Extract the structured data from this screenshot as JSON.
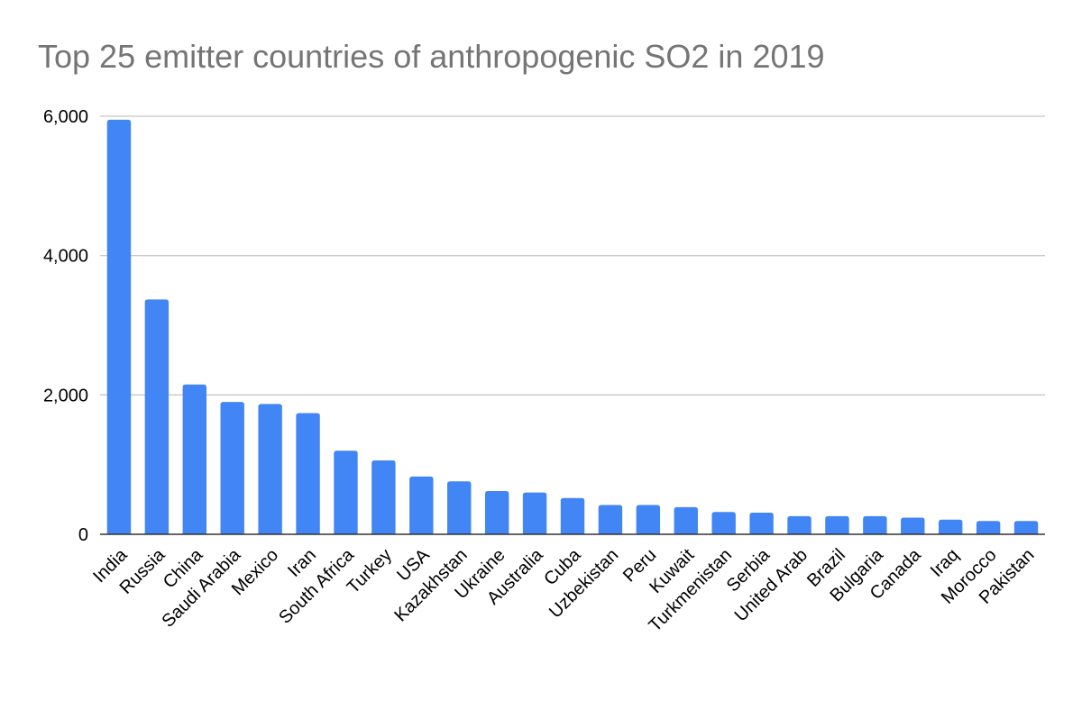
{
  "chart_data": {
    "type": "bar",
    "title": "Top 25 emitter countries of anthropogenic SO2 in 2019",
    "xlabel": "",
    "ylabel": "",
    "ylim": [
      0,
      6000
    ],
    "yticks": [
      0,
      2000,
      4000,
      6000
    ],
    "ytick_labels": [
      "0",
      "2,000",
      "4,000",
      "6,000"
    ],
    "grid": true,
    "legend": "none",
    "bar_color": "#4285f4",
    "categories": [
      "India",
      "Russia",
      "China",
      "Saudi Arabia",
      "Mexico",
      "Iran",
      "South Africa",
      "Turkey",
      "USA",
      "Kazakhstan",
      "Ukraine",
      "Australia",
      "Cuba",
      "Uzbekistan",
      "Peru",
      "Kuwait",
      "Turkmenistan",
      "Serbia",
      "United Arab",
      "Brazil",
      "Bulgaria",
      "Canada",
      "Iraq",
      "Morocco",
      "Pakistan"
    ],
    "values": [
      5950,
      3370,
      2150,
      1900,
      1870,
      1740,
      1200,
      1060,
      830,
      760,
      620,
      600,
      520,
      420,
      420,
      390,
      320,
      310,
      260,
      260,
      260,
      240,
      210,
      190,
      190
    ]
  }
}
